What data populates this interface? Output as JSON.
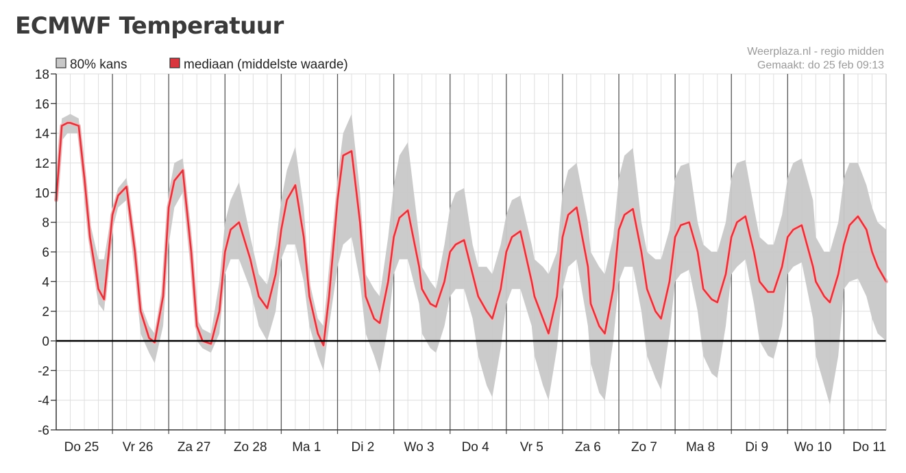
{
  "page": {
    "title": "ECMWF Temperatuur"
  },
  "chart_data": {
    "type": "area",
    "title": "ECMWF Temperatuur",
    "source_lines": [
      "Weerplaza.nl - regio midden",
      "Gemaakt: do 25 feb 09:13"
    ],
    "legend": {
      "position": "top-left",
      "items": [
        {
          "label": "80% kans",
          "color": "#c8c8c8"
        },
        {
          "label": "mediaan (middelste waarde)",
          "color": "#d9363e"
        }
      ]
    },
    "ylim": [
      -6,
      18
    ],
    "yticks": [
      18,
      16,
      14,
      12,
      10,
      8,
      6,
      4,
      2,
      0,
      -2,
      -4,
      -6
    ],
    "grid": true,
    "x_unit": "day",
    "x_start_label": "Do 25",
    "day_labels": [
      "Do 25",
      "Vr 26",
      "Za 27",
      "Zo 28",
      "Ma 1",
      "Di 2",
      "Wo 3",
      "Do 4",
      "Vr 5",
      "Za 6",
      "Zo 7",
      "Ma 8",
      "Di 9",
      "Wo 10",
      "Do 11"
    ],
    "xlim": [
      0,
      14.75
    ],
    "zero_line": true,
    "series": [
      {
        "name": "mediaan (middelste waarde)",
        "color": "#d9363e",
        "x": [
          0,
          0.1,
          0.2,
          0.25,
          0.4,
          0.5,
          0.6,
          0.75,
          0.85,
          1.0,
          1.1,
          1.25,
          1.4,
          1.5,
          1.65,
          1.75,
          1.9,
          2.0,
          2.1,
          2.25,
          2.4,
          2.5,
          2.6,
          2.75,
          2.9,
          3.0,
          3.1,
          3.25,
          3.45,
          3.6,
          3.75,
          3.9,
          4.0,
          4.1,
          4.25,
          4.4,
          4.5,
          4.65,
          4.75,
          4.85,
          5.0,
          5.1,
          5.25,
          5.4,
          5.5,
          5.65,
          5.75,
          5.9,
          6.0,
          6.1,
          6.25,
          6.45,
          6.5,
          6.65,
          6.75,
          6.9,
          7.0,
          7.1,
          7.25,
          7.4,
          7.5,
          7.65,
          7.75,
          7.9,
          8.0,
          8.1,
          8.25,
          8.45,
          8.5,
          8.65,
          8.75,
          8.9,
          9.0,
          9.1,
          9.25,
          9.45,
          9.5,
          9.65,
          9.75,
          9.9,
          10.0,
          10.1,
          10.25,
          10.4,
          10.5,
          10.65,
          10.75,
          10.9,
          11.0,
          11.1,
          11.25,
          11.4,
          11.5,
          11.65,
          11.75,
          11.9,
          12.0,
          12.1,
          12.25,
          12.4,
          12.5,
          12.65,
          12.75,
          12.9,
          13.0,
          13.1,
          13.25,
          13.45,
          13.5,
          13.65,
          13.75,
          13.9,
          14.0,
          14.1,
          14.25,
          14.4,
          14.5,
          14.6,
          14.75
        ],
        "values": [
          9.5,
          14.5,
          14.7,
          14.7,
          14.5,
          11.0,
          7.0,
          3.5,
          2.8,
          8.5,
          9.8,
          10.4,
          6.0,
          2.0,
          0.2,
          -0.1,
          3.0,
          9.0,
          10.8,
          11.5,
          6.0,
          1.0,
          0.0,
          -0.2,
          2.0,
          6.0,
          7.5,
          8.0,
          5.5,
          3.0,
          2.2,
          4.5,
          7.5,
          9.5,
          10.5,
          7.0,
          3.0,
          0.5,
          -0.3,
          3.0,
          9.5,
          12.5,
          12.8,
          8.0,
          3.0,
          1.5,
          1.2,
          4.0,
          7.0,
          8.3,
          8.8,
          5.0,
          3.5,
          2.5,
          2.3,
          4.0,
          6.0,
          6.5,
          6.8,
          4.5,
          3.0,
          2.0,
          1.5,
          3.5,
          6.0,
          7.0,
          7.4,
          4.0,
          3.0,
          1.5,
          0.5,
          3.0,
          7.0,
          8.5,
          9.0,
          5.0,
          2.5,
          1.0,
          0.5,
          3.5,
          7.5,
          8.5,
          8.9,
          6.0,
          3.5,
          2.0,
          1.5,
          4.0,
          7.0,
          7.8,
          8.0,
          6.0,
          3.5,
          2.8,
          2.6,
          4.5,
          7.0,
          8.0,
          8.4,
          6.0,
          4.0,
          3.3,
          3.3,
          5.0,
          7.0,
          7.5,
          7.8,
          5.0,
          4.0,
          3.0,
          2.6,
          4.5,
          6.5,
          7.8,
          8.4,
          7.5,
          6.0,
          5.0,
          4.0
        ]
      },
      {
        "name": "80% kans",
        "color": "#c8c8c8",
        "x": [
          0,
          0.1,
          0.2,
          0.25,
          0.4,
          0.5,
          0.6,
          0.75,
          0.85,
          1.0,
          1.1,
          1.25,
          1.4,
          1.5,
          1.65,
          1.75,
          1.9,
          2.0,
          2.1,
          2.25,
          2.4,
          2.5,
          2.6,
          2.75,
          2.9,
          3.0,
          3.1,
          3.25,
          3.45,
          3.6,
          3.75,
          3.9,
          4.0,
          4.1,
          4.25,
          4.4,
          4.5,
          4.65,
          4.75,
          4.85,
          5.0,
          5.1,
          5.25,
          5.4,
          5.5,
          5.65,
          5.75,
          5.9,
          6.0,
          6.1,
          6.25,
          6.45,
          6.5,
          6.65,
          6.75,
          6.9,
          7.0,
          7.1,
          7.25,
          7.4,
          7.5,
          7.65,
          7.75,
          7.9,
          8.0,
          8.1,
          8.25,
          8.45,
          8.5,
          8.65,
          8.75,
          8.9,
          9.0,
          9.1,
          9.25,
          9.45,
          9.5,
          9.65,
          9.75,
          9.9,
          10.0,
          10.1,
          10.25,
          10.4,
          10.5,
          10.65,
          10.75,
          10.9,
          11.0,
          11.1,
          11.25,
          11.4,
          11.5,
          11.65,
          11.75,
          11.9,
          12.0,
          12.1,
          12.25,
          12.4,
          12.5,
          12.65,
          12.75,
          12.9,
          13.0,
          13.1,
          13.25,
          13.45,
          13.5,
          13.65,
          13.75,
          13.9,
          14.0,
          14.1,
          14.25,
          14.4,
          14.5,
          14.6,
          14.75
        ],
        "upper": [
          10.0,
          15.0,
          15.2,
          15.3,
          15.0,
          11.5,
          8.0,
          5.5,
          5.5,
          9.0,
          10.3,
          11.0,
          7.0,
          2.5,
          1.0,
          0.5,
          4.0,
          10.0,
          12.0,
          12.3,
          7.5,
          1.5,
          0.8,
          0.5,
          4.0,
          8.0,
          9.5,
          10.7,
          7.0,
          4.5,
          3.8,
          6.5,
          9.5,
          11.5,
          13.1,
          9.0,
          4.0,
          1.5,
          1.0,
          5.0,
          11.0,
          14.0,
          15.3,
          10.0,
          4.5,
          3.5,
          3.0,
          7.0,
          10.5,
          12.5,
          13.4,
          7.0,
          5.0,
          4.0,
          3.5,
          6.5,
          9.0,
          10.0,
          10.3,
          6.5,
          5.0,
          5.0,
          4.5,
          6.5,
          8.5,
          9.5,
          9.8,
          6.5,
          5.5,
          5.0,
          4.5,
          6.0,
          10.0,
          11.5,
          12.0,
          8.0,
          6.0,
          5.0,
          4.5,
          7.0,
          11.0,
          12.5,
          13.0,
          8.0,
          6.0,
          5.5,
          5.5,
          7.5,
          11.0,
          11.8,
          12.0,
          8.0,
          6.5,
          6.0,
          6.0,
          8.0,
          11.0,
          12.0,
          12.2,
          9.0,
          7.0,
          6.5,
          6.5,
          8.5,
          11.0,
          12.0,
          12.3,
          9.5,
          7.0,
          6.0,
          6.0,
          8.0,
          11.0,
          12.0,
          12.0,
          10.5,
          9.0,
          8.0,
          7.5
        ],
        "lower": [
          9.0,
          13.5,
          14.0,
          14.0,
          14.0,
          10.0,
          6.0,
          2.5,
          2.0,
          7.5,
          9.0,
          9.5,
          4.5,
          0.5,
          -0.8,
          -1.5,
          1.0,
          6.5,
          9.0,
          10.0,
          4.5,
          0.0,
          -0.5,
          -0.8,
          0.5,
          4.5,
          5.5,
          5.5,
          3.5,
          1.0,
          0.0,
          2.0,
          5.5,
          6.5,
          6.5,
          4.0,
          1.0,
          -1.0,
          -2.0,
          1.0,
          5.0,
          6.5,
          7.0,
          4.0,
          0.5,
          -1.0,
          -2.2,
          1.0,
          4.5,
          5.5,
          5.5,
          2.5,
          0.5,
          -0.5,
          -0.8,
          1.0,
          3.0,
          3.5,
          3.5,
          1.5,
          -1.0,
          -3.0,
          -3.8,
          -0.5,
          2.5,
          3.5,
          3.5,
          1.0,
          -1.0,
          -3.0,
          -4.0,
          -0.5,
          3.5,
          5.0,
          5.5,
          1.0,
          -1.5,
          -3.5,
          -4.0,
          0.0,
          4.0,
          5.0,
          5.0,
          2.0,
          -1.0,
          -2.5,
          -3.3,
          0.5,
          4.0,
          4.5,
          4.8,
          2.0,
          -1.0,
          -2.2,
          -2.5,
          1.0,
          4.5,
          5.0,
          5.5,
          2.5,
          0.0,
          -1.0,
          -1.2,
          1.0,
          4.5,
          5.0,
          5.3,
          1.5,
          -1.0,
          -3.0,
          -4.3,
          -1.0,
          3.5,
          4.0,
          4.2,
          3.0,
          1.5,
          0.5,
          0.0
        ]
      }
    ]
  }
}
